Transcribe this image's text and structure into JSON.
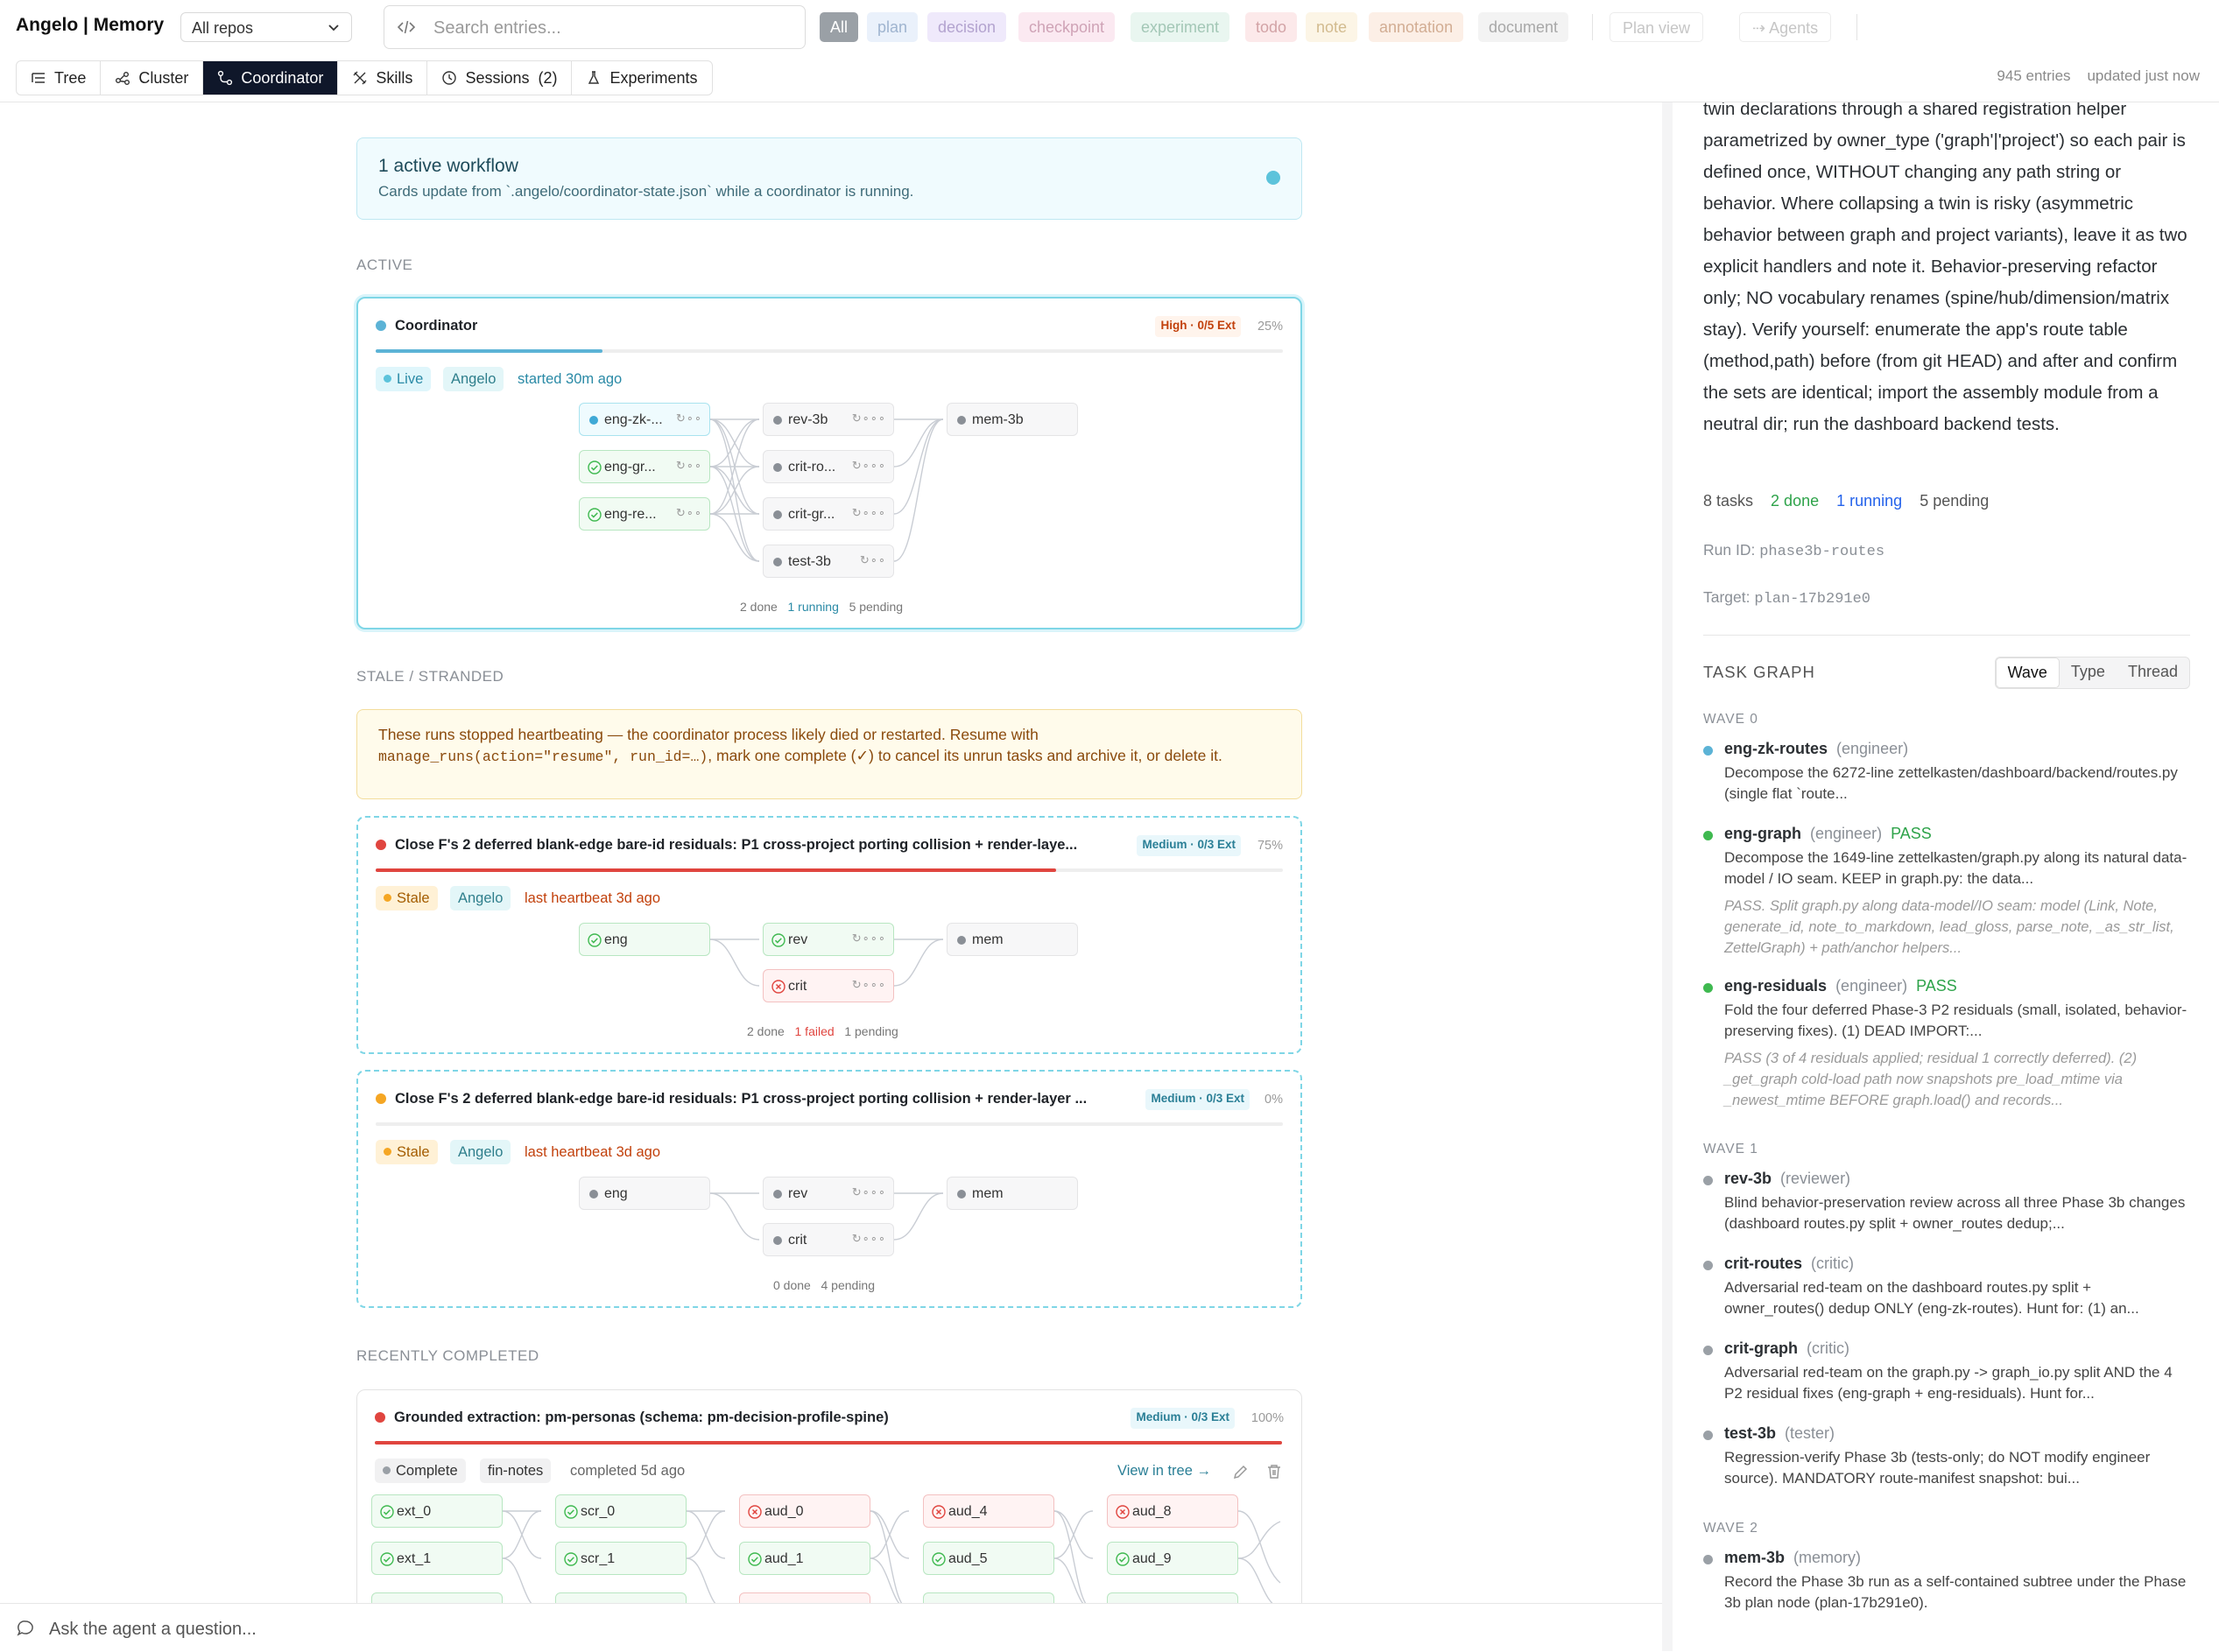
{
  "header": {
    "brand": "Angelo | Memory",
    "repo_select": "All repos",
    "search_placeholder": "Search entries...",
    "filters": [
      "All",
      "plan",
      "decision",
      "checkpoint",
      "experiment",
      "todo",
      "note",
      "annotation",
      "document"
    ],
    "plan_view": "Plan view",
    "agents": "⇢ Agents",
    "entries": "945 entries",
    "updated": "updated just now"
  },
  "nav": {
    "tabs": [
      {
        "label": "Tree",
        "icon": "tree-icon"
      },
      {
        "label": "Cluster",
        "icon": "cluster-icon"
      },
      {
        "label": "Coordinator",
        "icon": "coordinator-icon"
      },
      {
        "label": "Skills",
        "icon": "skills-icon"
      },
      {
        "label": "Sessions  (2)",
        "icon": "clock-icon"
      },
      {
        "label": "Experiments",
        "icon": "flask-icon"
      }
    ],
    "active": "Coordinator"
  },
  "info": {
    "title": "1 active workflow",
    "subtitle": "Cards update from `.angelo/coordinator-state.json` while a coordinator is running."
  },
  "sections": {
    "active": "ACTIVE",
    "stale": "STALE / STRANDED",
    "completed": "RECENTLY COMPLETED"
  },
  "active_card": {
    "title": "Coordinator",
    "priority": "High · 0/5 Ext",
    "percent": "25%",
    "progress": 0.25,
    "status": "Live",
    "owner": "Angelo",
    "meta": "started 30m ago",
    "nodes": {
      "n1": "eng-zk-...",
      "n2": "eng-gr...",
      "n3": "eng-re...",
      "n4": "rev-3b",
      "n5": "crit-ro...",
      "n6": "crit-gr...",
      "n7": "test-3b",
      "n8": "mem-3b"
    },
    "summary": {
      "done": "2 done",
      "running": "1 running",
      "pending": "5 pending"
    }
  },
  "stale_notice": {
    "text1": "These runs stopped heartbeating — the coordinator process likely died or restarted. Resume with",
    "code": "manage_runs(action=\"resume\", run_id=…)",
    "text2": ", mark one complete (✓) to cancel its unrun tasks and archive it, or delete it."
  },
  "stale_card_1": {
    "title": "Close F's 2 deferred blank-edge bare-id residuals: P1 cross-project porting collision + render-laye...",
    "priority": "Medium · 0/3 Ext",
    "percent": "75%",
    "progress": 0.75,
    "status": "Stale",
    "owner": "Angelo",
    "meta": "last heartbeat 3d ago",
    "nodes": {
      "n1": "eng",
      "n2": "rev",
      "n3": "crit",
      "n4": "mem"
    },
    "summary": {
      "done": "2 done",
      "failed": "1 failed",
      "pending": "1 pending"
    }
  },
  "stale_card_2": {
    "title": "Close F's 2 deferred blank-edge bare-id residuals: P1 cross-project porting collision + render-layer ...",
    "priority": "Medium · 0/3 Ext",
    "percent": "0%",
    "progress": 0,
    "status": "Stale",
    "owner": "Angelo",
    "meta": "last heartbeat 3d ago",
    "nodes": {
      "n1": "eng",
      "n2": "rev",
      "n3": "crit",
      "n4": "mem"
    },
    "summary": {
      "done": "0 done",
      "pending": "4 pending"
    }
  },
  "completed_card": {
    "title": "Grounded extraction: pm-personas (schema: pm-decision-profile-spine)",
    "priority": "Medium · 0/3 Ext",
    "percent": "100%",
    "progress": 1.0,
    "status": "Complete",
    "tag": "fin-notes",
    "meta": "completed 5d ago",
    "view_link": "View in tree →",
    "nodes": {
      "c1": "ext_0",
      "c2": "scr_0",
      "c3": "aud_0",
      "c4": "aud_4",
      "c5": "aud_8",
      "c6": "ext_1",
      "c7": "scr_1",
      "c8": "aud_1",
      "c9": "aud_5",
      "c10": "aud_9"
    }
  },
  "detail": {
    "description": "twin declarations through a shared registration helper parametrized by owner_type ('graph'|'project') so each pair is defined once, WITHOUT changing any path string or behavior. Where collapsing a twin is risky (asymmetric behavior between graph and project variants), leave it as two explicit handlers and note it. Behavior-preserving refactor only; NO vocabulary renames (spine/hub/dimension/matrix stay). Verify yourself: enumerate the app's route table (method,path) before (from git HEAD) and after and confirm the sets are identical; import the assembly module from a neutral dir; run the dashboard backend tests.",
    "tasks_count": "8 tasks",
    "done": "2 done",
    "running": "1 running",
    "pending": "5 pending",
    "run_id_label": "Run ID:",
    "run_id": "phase3b-routes",
    "target_label": "Target:",
    "target": "plan-17b291e0",
    "task_graph_title": "TASK GRAPH",
    "views": [
      "Wave",
      "Type",
      "Thread"
    ],
    "waves": [
      {
        "label": "WAVE 0"
      },
      {
        "label": "WAVE 1"
      },
      {
        "label": "WAVE 2"
      }
    ],
    "tasks": [
      {
        "name": "eng-zk-routes",
        "role": "(engineer)",
        "pass": "",
        "desc": "Decompose the 6272-line zettelkasten/dashboard/backend/routes.py (single flat `route...",
        "result": ""
      },
      {
        "name": "eng-graph",
        "role": "(engineer)",
        "pass": "PASS",
        "desc": "Decompose the 1649-line zettelkasten/graph.py along its natural data-model / IO seam. KEEP in graph.py: the data...",
        "result": "PASS. Split graph.py along data-model/IO seam: model (Link, Note, generate_id, note_to_markdown, lead_gloss, parse_note, _as_str_list, ZettelGraph) + path/anchor helpers..."
      },
      {
        "name": "eng-residuals",
        "role": "(engineer)",
        "pass": "PASS",
        "desc": "Fold the four deferred Phase-3 P2 residuals (small, isolated, behavior-preserving fixes). (1) DEAD IMPORT:...",
        "result": "PASS (3 of 4 residuals applied; residual 1 correctly deferred). (2) _get_graph cold-load path now snapshots pre_load_mtime via _newest_mtime BEFORE graph.load() and records..."
      },
      {
        "name": "rev-3b",
        "role": "(reviewer)",
        "pass": "",
        "desc": "Blind behavior-preservation review across all three Phase 3b changes (dashboard routes.py split + owner_routes dedup;...",
        "result": ""
      },
      {
        "name": "crit-routes",
        "role": "(critic)",
        "pass": "",
        "desc": "Adversarial red-team on the dashboard routes.py split + owner_routes() dedup ONLY (eng-zk-routes). Hunt for: (1) an...",
        "result": ""
      },
      {
        "name": "crit-graph",
        "role": "(critic)",
        "pass": "",
        "desc": "Adversarial red-team on the graph.py -> graph_io.py split AND the 4 P2 residual fixes (eng-graph + eng-residuals). Hunt for...",
        "result": ""
      },
      {
        "name": "test-3b",
        "role": "(tester)",
        "pass": "",
        "desc": "Regression-verify Phase 3b (tests-only; do NOT modify engineer source). MANDATORY route-manifest snapshot: bui...",
        "result": ""
      },
      {
        "name": "mem-3b",
        "role": "(memory)",
        "pass": "",
        "desc": "Record the Phase 3b run as a self-contained subtree under the Phase 3b plan node (plan-17b291e0).",
        "result": ""
      }
    ]
  },
  "ask": {
    "placeholder": "Ask the agent a question..."
  },
  "colors": {
    "accent": "#0f172a",
    "live": "#5cc3db",
    "stale": "#f5a623",
    "fail": "#e0453f",
    "done": "#3fb950"
  }
}
